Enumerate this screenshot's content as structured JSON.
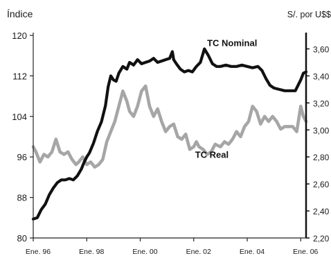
{
  "chart_data": {
    "type": "line",
    "ylabel_left": "Índice",
    "ylabel_right": "S/. por U$$",
    "y_left": {
      "lim": [
        80,
        120
      ],
      "ticks": [
        "120",
        "112",
        "104",
        "96",
        "88",
        "80"
      ],
      "values": [
        120,
        112,
        104,
        96,
        88,
        80
      ]
    },
    "y_right": {
      "lim": [
        2.2,
        3.7
      ],
      "ticks": [
        "3,60",
        "3,40",
        "3,20",
        "3,00",
        "2,80",
        "2,60",
        "2,40",
        "2,20"
      ],
      "values": [
        3.6,
        3.4,
        3.2,
        3.0,
        2.8,
        2.6,
        2.4,
        2.2
      ]
    },
    "x": {
      "lim": [
        1996.0,
        2006.2
      ],
      "ticks": [
        "Ene. 96",
        "Ene. 98",
        "Ene. 00",
        "Ene. 02",
        "Ene. 04",
        "Ene. 06"
      ],
      "tick_values": [
        1996,
        1998,
        2000,
        2002,
        2004,
        2006
      ]
    },
    "grid": false,
    "series": [
      {
        "name": "TC Nominal",
        "axis": "right",
        "color": "#111111",
        "x": [
          1996.0,
          1996.15,
          1996.3,
          1996.45,
          1996.6,
          1996.75,
          1996.9,
          1997.05,
          1997.2,
          1997.35,
          1997.5,
          1997.65,
          1997.8,
          1997.9,
          1998.0,
          1998.1,
          1998.25,
          1998.4,
          1998.55,
          1998.7,
          1998.8,
          1998.9,
          1999.0,
          1999.1,
          1999.2,
          1999.35,
          1999.5,
          1999.6,
          1999.75,
          1999.9,
          2000.05,
          2000.2,
          2000.35,
          2000.5,
          2000.65,
          2000.8,
          2000.95,
          2001.1,
          2001.2,
          2001.25,
          2001.35,
          2001.5,
          2001.65,
          2001.8,
          2001.95,
          2002.1,
          2002.25,
          2002.4,
          2002.55,
          2002.7,
          2002.85,
          2003.0,
          2003.2,
          2003.4,
          2003.6,
          2003.8,
          2004.0,
          2004.2,
          2004.4,
          2004.55,
          2004.7,
          2004.85,
          2005.0,
          2005.2,
          2005.4,
          2005.6,
          2005.8,
          2005.9,
          2006.0,
          2006.1,
          2006.2
        ],
        "values": [
          2.34,
          2.35,
          2.41,
          2.45,
          2.52,
          2.57,
          2.61,
          2.63,
          2.63,
          2.64,
          2.63,
          2.66,
          2.71,
          2.76,
          2.8,
          2.83,
          2.9,
          2.99,
          3.06,
          3.18,
          3.32,
          3.4,
          3.37,
          3.36,
          3.42,
          3.47,
          3.45,
          3.5,
          3.48,
          3.52,
          3.49,
          3.5,
          3.51,
          3.53,
          3.5,
          3.51,
          3.52,
          3.53,
          3.58,
          3.52,
          3.49,
          3.45,
          3.43,
          3.44,
          3.43,
          3.47,
          3.5,
          3.6,
          3.55,
          3.49,
          3.47,
          3.47,
          3.48,
          3.47,
          3.47,
          3.48,
          3.47,
          3.46,
          3.47,
          3.44,
          3.38,
          3.33,
          3.31,
          3.3,
          3.29,
          3.29,
          3.29,
          3.33,
          3.37,
          3.42,
          3.43
        ]
      },
      {
        "name": "TC Real",
        "axis": "left",
        "color": "#a6a6a6",
        "x": [
          1996.0,
          1996.1,
          1996.25,
          1996.4,
          1996.55,
          1996.7,
          1996.85,
          1997.0,
          1997.15,
          1997.3,
          1997.45,
          1997.6,
          1997.7,
          1997.85,
          1998.0,
          1998.15,
          1998.3,
          1998.45,
          1998.6,
          1998.75,
          1998.9,
          1999.05,
          1999.2,
          1999.35,
          1999.5,
          1999.6,
          1999.75,
          1999.9,
          2000.05,
          2000.2,
          2000.35,
          2000.5,
          2000.65,
          2000.8,
          2000.95,
          2001.1,
          2001.25,
          2001.4,
          2001.55,
          2001.7,
          2001.85,
          2002.0,
          2002.1,
          2002.2,
          2002.35,
          2002.5,
          2002.65,
          2002.8,
          2003.0,
          2003.15,
          2003.3,
          2003.45,
          2003.6,
          2003.75,
          2003.9,
          2004.05,
          2004.2,
          2004.35,
          2004.5,
          2004.65,
          2004.8,
          2004.95,
          2005.1,
          2005.25,
          2005.4,
          2005.55,
          2005.7,
          2005.85,
          2006.0,
          2006.1,
          2006.2
        ],
        "values": [
          98,
          97,
          95,
          96.5,
          96,
          97,
          99.5,
          97,
          96.5,
          97,
          95.5,
          94.5,
          95,
          96,
          94.5,
          95,
          94,
          94.5,
          95.5,
          99,
          101,
          103,
          106,
          109,
          107,
          105,
          104,
          106,
          109,
          110,
          106,
          104,
          105.5,
          103,
          101,
          102,
          102.5,
          100,
          99.5,
          100.5,
          97.5,
          98,
          99,
          98,
          97.5,
          96.5,
          97,
          98.5,
          98,
          99,
          98.5,
          99.5,
          101,
          100,
          102,
          103,
          106,
          105,
          102.5,
          104,
          103,
          104,
          103,
          101.5,
          102,
          102,
          102,
          101,
          106,
          104,
          103
        ]
      }
    ],
    "annotations": [
      {
        "text": "TC Nominal",
        "x": 2002.5,
        "y_right": 3.62
      },
      {
        "text": "TC Real",
        "x": 2002.05,
        "y_left": 95.8
      }
    ]
  }
}
